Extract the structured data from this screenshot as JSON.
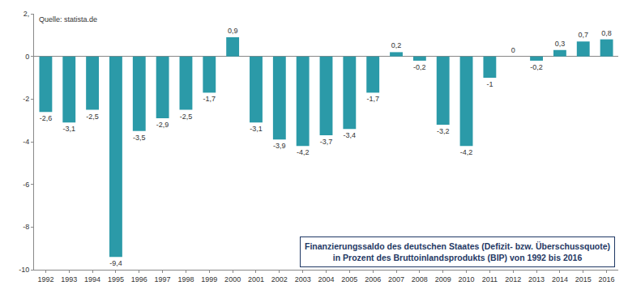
{
  "chart_data": {
    "type": "bar",
    "title": "Finanzierungssaldo des deutschen Staates (Defizit- bzw. Überschussquote)\nin Prozent des Bruttoinlandsprodukts (BIP) von 1992 bis 2016",
    "annotations": [
      "Quelle: statista.de"
    ],
    "categories": [
      "1992",
      "1993",
      "1994",
      "1995",
      "1996",
      "1997",
      "1998",
      "1999",
      "2000",
      "2001",
      "2002",
      "2003",
      "2004",
      "2005",
      "2006",
      "2007",
      "2008",
      "2009",
      "2010",
      "2011",
      "2012",
      "2013",
      "2014",
      "2015",
      "2016"
    ],
    "values": [
      -2.6,
      -3.1,
      -2.5,
      -9.4,
      -3.5,
      -2.9,
      -2.5,
      -1.7,
      0.9,
      -3.1,
      -3.9,
      -4.2,
      -3.7,
      -3.4,
      -1.7,
      0.2,
      -0.2,
      -3.2,
      -4.2,
      -1,
      0,
      -0.2,
      0.3,
      0.7,
      0.8
    ],
    "value_labels": [
      "-2,6",
      "-3,1",
      "-2,5",
      "-9,4",
      "-3,5",
      "-2,9",
      "-2,5",
      "-1,7",
      "0,9",
      "-3,1",
      "-3,9",
      "-4,2",
      "-3,7",
      "-3,4",
      "-1,7",
      "0,2",
      "-0,2",
      "-3,2",
      "-4,2",
      "-1",
      "0",
      "-0,2",
      "0,3",
      "0,7",
      "0,8"
    ],
    "color": "#2b9aa8",
    "ylim": [
      -10,
      2
    ],
    "yticks": [
      -10,
      -8,
      -6,
      -4,
      -2,
      0,
      {
        "value": 2,
        "label": "2,"
      }
    ],
    "grid": false,
    "data_labels": true
  }
}
